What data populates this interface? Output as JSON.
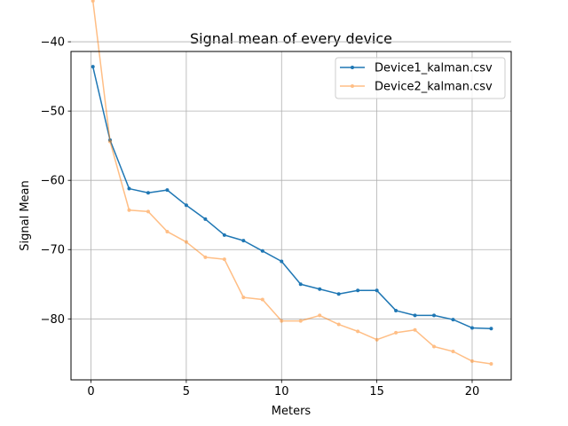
{
  "chart_data": {
    "type": "line",
    "title": "Signal mean of every device",
    "xlabel": "Meters",
    "ylabel": "Signal Mean",
    "xlim": [
      -1.05,
      22.05
    ],
    "ylim": [
      -88.8,
      -41.4
    ],
    "xticks": [
      0,
      5,
      10,
      15,
      20
    ],
    "yticks": [
      -80,
      -70,
      -60,
      -50,
      -40
    ],
    "xtick_labels": [
      "0",
      "5",
      "10",
      "15",
      "20"
    ],
    "ytick_labels": [
      "−80",
      "−70",
      "−60",
      "−50",
      "−40"
    ],
    "grid": true,
    "legend_position": "top-right",
    "series": [
      {
        "name": "Device1_kalman.csv",
        "color": "#1f77b4",
        "alpha": 1.0,
        "x": [
          0.1,
          1,
          2,
          3,
          4,
          5,
          6,
          7,
          8,
          9,
          10,
          11,
          12,
          13,
          14,
          15,
          16,
          17,
          18,
          19,
          20,
          21
        ],
        "values": [
          -43.6,
          -54.2,
          -61.2,
          -61.8,
          -61.4,
          -63.6,
          -65.6,
          -67.9,
          -68.7,
          -70.2,
          -71.7,
          -75.0,
          -75.7,
          -76.4,
          -75.9,
          -75.9,
          -78.8,
          -79.5,
          -79.5,
          -80.1,
          -81.3,
          -81.4
        ]
      },
      {
        "name": "Device2_kalman.csv",
        "color": "#ff7f0e",
        "alpha": 0.5,
        "x": [
          0.1,
          1,
          2,
          3,
          4,
          5,
          6,
          7,
          8,
          9,
          10,
          11,
          12,
          13,
          14,
          15,
          16,
          17,
          18,
          19,
          20,
          21
        ],
        "values": [
          -34.1,
          -54.4,
          -64.3,
          -64.5,
          -67.4,
          -68.9,
          -71.1,
          -71.4,
          -76.9,
          -77.2,
          -80.3,
          -80.3,
          -79.5,
          -80.8,
          -81.8,
          -83.0,
          -82.0,
          -81.6,
          -84.0,
          -84.7,
          -86.1,
          -86.5
        ]
      }
    ]
  }
}
